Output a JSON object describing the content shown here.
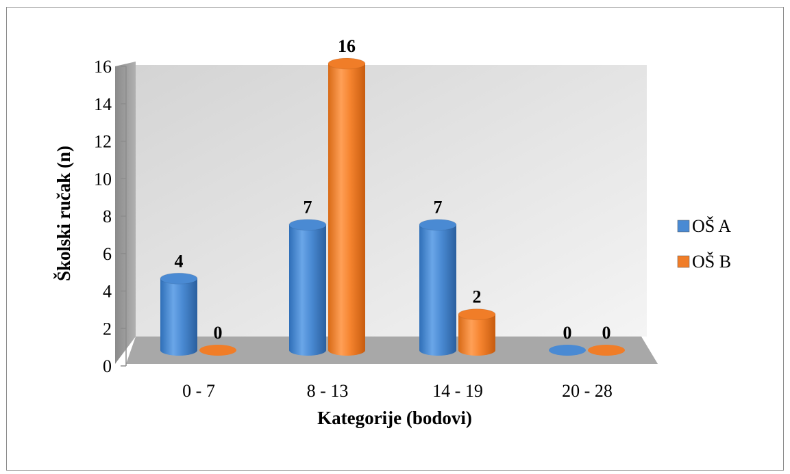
{
  "chart_data": {
    "type": "bar",
    "style": "3d-cylinder",
    "categories": [
      "0 - 7",
      "8 - 13",
      "14 - 19",
      "20 - 28"
    ],
    "series": [
      {
        "name": "OŠ A",
        "values": [
          4,
          7,
          7,
          0
        ],
        "color": "#4a8ad3"
      },
      {
        "name": "OŠ B",
        "values": [
          0,
          16,
          2,
          0
        ],
        "color": "#f07d28"
      }
    ],
    "xlabel": "Kategorije (bodovi)",
    "ylabel": "Školski ručak (n)",
    "ylim": [
      0,
      16
    ],
    "yticks": [
      0,
      2,
      4,
      6,
      8,
      10,
      12,
      14,
      16
    ],
    "legend_position": "right",
    "data_labels": true,
    "grid": false
  }
}
